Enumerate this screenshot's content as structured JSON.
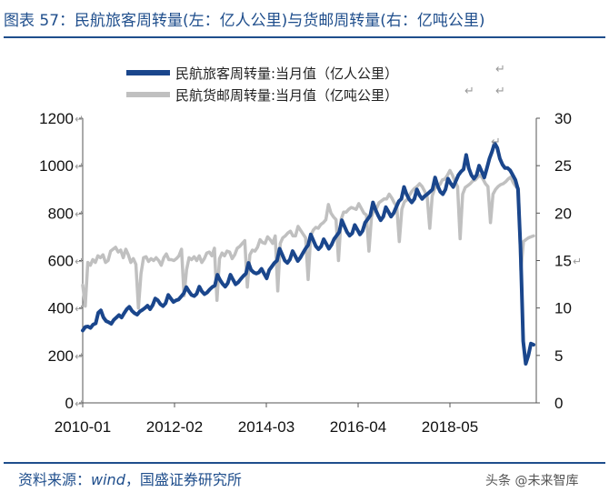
{
  "figure": {
    "title": "图表 57：民航旅客周转量(左：亿人公里)与货邮周转量(右：亿吨公里)",
    "source_prefix": "资料来源：",
    "source_italic": "wind",
    "source_suffix": "，国盛证券研究所",
    "watermark": "头条 @未来智库"
  },
  "colors": {
    "series1": "#1a468c",
    "series2": "#c0c0c0",
    "accent": "#1f4e8c"
  },
  "chart_data": {
    "type": "line",
    "x_ticks": [
      "2010-01",
      "2012-02",
      "2014-03",
      "2016-04",
      "2018-05"
    ],
    "y_left": {
      "min": 0,
      "max": 1200,
      "ticks": [
        0,
        200,
        400,
        600,
        800,
        1000,
        1200
      ]
    },
    "y_right": {
      "min": 0,
      "max": 30,
      "ticks": [
        0,
        5,
        10,
        15,
        20,
        25,
        30
      ]
    },
    "legend_position": "top",
    "series": [
      {
        "name": "民航旅客周转量:当月值（亿人公里）",
        "axis": "left",
        "values": [
          305,
          320,
          322,
          316,
          330,
          335,
          380,
          390,
          360,
          345,
          340,
          333,
          350,
          360,
          370,
          360,
          378,
          395,
          405,
          388,
          378,
          372,
          385,
          392,
          400,
          410,
          395,
          412,
          440,
          432,
          416,
          408,
          420,
          455,
          440,
          425,
          432,
          436,
          448,
          462,
          488,
          470,
          455,
          450,
          460,
          490,
          470,
          458,
          465,
          478,
          488,
          495,
          540,
          518,
          502,
          490,
          505,
          540,
          520,
          500,
          508,
          522,
          535,
          545,
          590,
          560,
          550,
          545,
          550,
          565,
          545,
          525,
          560,
          575,
          590,
          600,
          650,
          625,
          600,
          590,
          605,
          640,
          620,
          598,
          612,
          632,
          650,
          665,
          710,
          685,
          660,
          648,
          660,
          690,
          670,
          650,
          666,
          690,
          705,
          720,
          770,
          745,
          720,
          705,
          715,
          750,
          730,
          710,
          725,
          760,
          775,
          790,
          845,
          815,
          790,
          770,
          785,
          825,
          805,
          785,
          800,
          825,
          850,
          860,
          910,
          880,
          858,
          845,
          860,
          900,
          875,
          860,
          872,
          880,
          890,
          900,
          950,
          915,
          890,
          880,
          900,
          945,
          925,
          910,
          935,
          960,
          975,
          985,
          1045,
          990,
          960,
          945,
          960,
          1000,
          975,
          950,
          990,
          1030,
          1060,
          1095,
          1075,
          1030,
          1005,
          990,
          990,
          980,
          960,
          940,
          900,
          650,
          260,
          165,
          200,
          250,
          245
        ]
      },
      {
        "name": "民航货邮周转量:当月值（亿吨公里）",
        "axis": "right",
        "values": [
          12.4,
          10.2,
          14.8,
          14.5,
          15.1,
          14.8,
          15.5,
          15.3,
          15.6,
          14.8,
          15.0,
          16.0,
          16.2,
          16.4,
          15.9,
          16.1,
          15.3,
          16.2,
          15.6,
          14.8,
          15.2,
          14.6,
          10.0,
          13.6,
          15.3,
          15.4,
          14.9,
          15.2,
          15.0,
          15.3,
          15.0,
          14.5,
          15.3,
          15.7,
          15.1,
          15.1,
          15.0,
          15.2,
          15.5,
          16.2,
          11.3,
          14.0,
          15.3,
          15.1,
          15.4,
          15.0,
          15.5,
          14.8,
          15.2,
          15.8,
          15.9,
          15.5,
          16.3,
          10.8,
          15.2,
          15.8,
          15.5,
          16.0,
          15.9,
          15.2,
          15.6,
          16.3,
          16.5,
          16.8,
          17.1,
          12.2,
          15.6,
          16.1,
          16.0,
          16.4,
          17.2,
          16.9,
          16.8,
          17.5,
          17.2,
          16.8,
          17.6,
          11.8,
          16.8,
          17.4,
          17.6,
          17.9,
          18.1,
          17.6,
          17.6,
          18.6,
          18.2,
          17.8,
          17.4,
          13.0,
          17.6,
          18.2,
          18.5,
          18.4,
          18.8,
          19.0,
          19.3,
          20.9,
          20.0,
          19.6,
          19.3,
          15.0,
          19.3,
          20.1,
          20.1,
          20.4,
          20.6,
          20.5,
          20.4,
          21.0,
          20.5,
          20.0,
          19.8,
          16.0,
          19.6,
          20.3,
          20.5,
          21.1,
          21.3,
          21.5,
          21.5,
          22.0,
          21.6,
          21.1,
          20.7,
          17.0,
          20.4,
          21.2,
          21.4,
          21.9,
          22.3,
          22.6,
          22.8,
          23.1,
          22.8,
          22.3,
          21.7,
          18.4,
          21.8,
          22.6,
          22.8,
          23.0,
          23.5,
          23.6,
          24.0,
          24.5,
          24.0,
          23.3,
          22.8,
          17.3,
          22.0,
          22.7,
          22.9,
          23.1,
          23.4,
          23.5,
          23.8,
          24.0,
          23.6,
          23.1,
          22.8,
          19.0,
          22.0,
          22.5,
          22.8,
          23.0,
          23.1,
          23.3,
          23.6,
          23.8,
          23.2,
          22.8,
          22.6,
          14.0,
          17.0,
          17.2,
          17.4,
          17.5,
          17.6
        ]
      }
    ]
  }
}
